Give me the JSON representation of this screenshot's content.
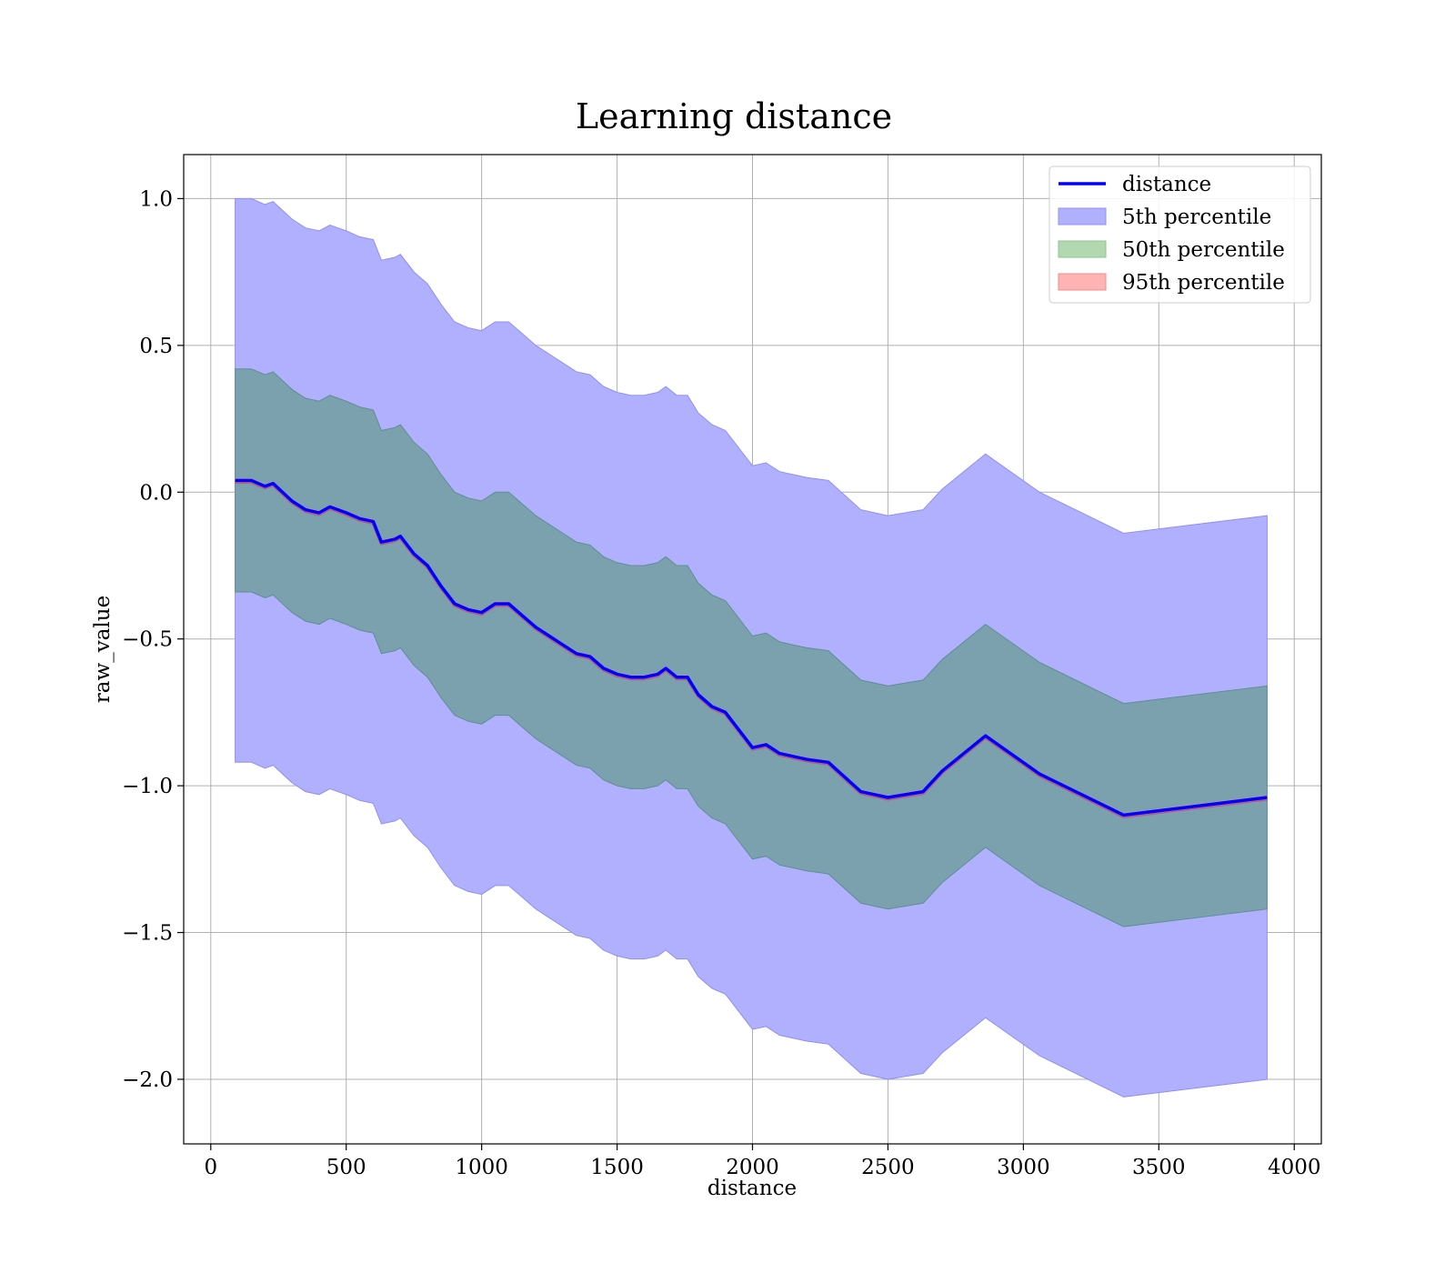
{
  "chart_data": {
    "type": "line",
    "title": "Learning distance",
    "xlabel": "distance",
    "ylabel": "raw_value",
    "xlim": [
      -100,
      4100
    ],
    "ylim": [
      -2.22,
      1.15
    ],
    "x_ticks": [
      0,
      500,
      1000,
      1500,
      2000,
      2500,
      3000,
      3500,
      4000
    ],
    "x_tick_labels": [
      "0",
      "500",
      "1000",
      "1500",
      "2000",
      "2500",
      "3000",
      "3500",
      "4000"
    ],
    "y_ticks": [
      1.0,
      0.5,
      0.0,
      -0.5,
      -1.0,
      -1.5,
      -2.0
    ],
    "y_tick_labels": [
      "1.0",
      "0.5",
      "0.0",
      "−0.5",
      "−1.0",
      "−1.5",
      "−2.0"
    ],
    "grid": true,
    "legend_position": "top-right",
    "legend": [
      {
        "label": "distance",
        "kind": "line",
        "color": "#0000ff"
      },
      {
        "label": "5th percentile",
        "kind": "patch",
        "color": "#b0b0ff",
        "edge": "#8f8ff5"
      },
      {
        "label": "50th percentile",
        "kind": "patch",
        "color": "#b2d8b2",
        "edge": "#8fc48f"
      },
      {
        "label": "95th percentile",
        "kind": "patch",
        "color": "#ffb3b3",
        "edge": "#f08c8c"
      }
    ],
    "colors": {
      "line": "#0000ff",
      "band_outer": "#b0b0ff",
      "band_outer_edge": "#8f8ff5",
      "band_inner": "#7ba1ae",
      "band_inner_edge": "#5f8f8f",
      "line_shadow": "#cc3366"
    },
    "series": [
      {
        "name": "distance",
        "x": [
          90,
          150,
          200,
          230,
          300,
          350,
          400,
          440,
          470,
          500,
          550,
          600,
          630,
          680,
          700,
          750,
          800,
          850,
          900,
          950,
          1000,
          1050,
          1100,
          1150,
          1200,
          1250,
          1300,
          1350,
          1400,
          1450,
          1500,
          1550,
          1600,
          1650,
          1680,
          1720,
          1760,
          1800,
          1850,
          1900,
          2000,
          2050,
          2100,
          2150,
          2200,
          2280,
          2400,
          2500,
          2630,
          2700,
          2860,
          3060,
          3370,
          3900
        ],
        "y": [
          0.04,
          0.04,
          0.02,
          0.03,
          -0.03,
          -0.06,
          -0.07,
          -0.05,
          -0.06,
          -0.07,
          -0.09,
          -0.1,
          -0.17,
          -0.16,
          -0.15,
          -0.21,
          -0.25,
          -0.32,
          -0.38,
          -0.4,
          -0.41,
          -0.38,
          -0.38,
          -0.42,
          -0.46,
          -0.49,
          -0.52,
          -0.55,
          -0.56,
          -0.6,
          -0.62,
          -0.63,
          -0.63,
          -0.62,
          -0.6,
          -0.63,
          -0.63,
          -0.69,
          -0.73,
          -0.75,
          -0.87,
          -0.86,
          -0.89,
          -0.9,
          -0.91,
          -0.92,
          -1.02,
          -1.04,
          -1.02,
          -0.95,
          -0.83,
          -0.96,
          -1.1,
          -1.04
        ]
      },
      {
        "name": "5th percentile",
        "x": [
          90,
          150,
          200,
          230,
          300,
          350,
          400,
          440,
          470,
          500,
          550,
          600,
          630,
          680,
          700,
          750,
          800,
          850,
          900,
          950,
          1000,
          1050,
          1100,
          1150,
          1200,
          1250,
          1300,
          1350,
          1400,
          1450,
          1500,
          1550,
          1600,
          1650,
          1680,
          1720,
          1760,
          1800,
          1850,
          1900,
          2000,
          2050,
          2100,
          2150,
          2200,
          2280,
          2400,
          2500,
          2630,
          2700,
          2860,
          3060,
          3370,
          3900
        ],
        "lower": [
          -0.92,
          -0.92,
          -0.94,
          -0.93,
          -0.99,
          -1.02,
          -1.03,
          -1.01,
          -1.02,
          -1.03,
          -1.05,
          -1.06,
          -1.13,
          -1.12,
          -1.11,
          -1.17,
          -1.21,
          -1.28,
          -1.34,
          -1.36,
          -1.37,
          -1.34,
          -1.34,
          -1.38,
          -1.42,
          -1.45,
          -1.48,
          -1.51,
          -1.52,
          -1.56,
          -1.58,
          -1.59,
          -1.59,
          -1.58,
          -1.56,
          -1.59,
          -1.59,
          -1.65,
          -1.69,
          -1.71,
          -1.83,
          -1.82,
          -1.85,
          -1.86,
          -1.87,
          -1.88,
          -1.98,
          -2.0,
          -1.98,
          -1.91,
          -1.79,
          -1.92,
          -2.06,
          -2.0
        ],
        "upper": [
          1.0,
          1.0,
          0.98,
          0.99,
          0.93,
          0.9,
          0.89,
          0.91,
          0.9,
          0.89,
          0.87,
          0.86,
          0.79,
          0.8,
          0.81,
          0.75,
          0.71,
          0.64,
          0.58,
          0.56,
          0.55,
          0.58,
          0.58,
          0.54,
          0.5,
          0.47,
          0.44,
          0.41,
          0.4,
          0.36,
          0.34,
          0.33,
          0.33,
          0.34,
          0.36,
          0.33,
          0.33,
          0.27,
          0.23,
          0.21,
          0.09,
          0.1,
          0.07,
          0.06,
          0.05,
          0.04,
          -0.06,
          -0.08,
          -0.06,
          0.01,
          0.13,
          0.0,
          -0.14,
          -0.08
        ]
      },
      {
        "name": "50th percentile",
        "x": [
          90,
          150,
          200,
          230,
          300,
          350,
          400,
          440,
          470,
          500,
          550,
          600,
          630,
          680,
          700,
          750,
          800,
          850,
          900,
          950,
          1000,
          1050,
          1100,
          1150,
          1200,
          1250,
          1300,
          1350,
          1400,
          1450,
          1500,
          1550,
          1600,
          1650,
          1680,
          1720,
          1760,
          1800,
          1850,
          1900,
          2000,
          2050,
          2100,
          2150,
          2200,
          2280,
          2400,
          2500,
          2630,
          2700,
          2860,
          3060,
          3370,
          3900
        ],
        "lower": [
          -0.34,
          -0.34,
          -0.36,
          -0.35,
          -0.41,
          -0.44,
          -0.45,
          -0.43,
          -0.44,
          -0.45,
          -0.47,
          -0.48,
          -0.55,
          -0.54,
          -0.53,
          -0.59,
          -0.63,
          -0.7,
          -0.76,
          -0.78,
          -0.79,
          -0.76,
          -0.76,
          -0.8,
          -0.84,
          -0.87,
          -0.9,
          -0.93,
          -0.94,
          -0.98,
          -1.0,
          -1.01,
          -1.01,
          -1.0,
          -0.98,
          -1.01,
          -1.01,
          -1.07,
          -1.11,
          -1.13,
          -1.25,
          -1.24,
          -1.27,
          -1.28,
          -1.29,
          -1.3,
          -1.4,
          -1.42,
          -1.4,
          -1.33,
          -1.21,
          -1.34,
          -1.48,
          -1.42
        ],
        "upper": [
          0.42,
          0.42,
          0.4,
          0.41,
          0.35,
          0.32,
          0.31,
          0.33,
          0.32,
          0.31,
          0.29,
          0.28,
          0.21,
          0.22,
          0.23,
          0.17,
          0.13,
          0.06,
          0.0,
          -0.02,
          -0.03,
          0.0,
          0.0,
          -0.04,
          -0.08,
          -0.11,
          -0.14,
          -0.17,
          -0.18,
          -0.22,
          -0.24,
          -0.25,
          -0.25,
          -0.24,
          -0.22,
          -0.25,
          -0.25,
          -0.31,
          -0.35,
          -0.37,
          -0.49,
          -0.48,
          -0.51,
          -0.52,
          -0.53,
          -0.54,
          -0.64,
          -0.66,
          -0.64,
          -0.57,
          -0.45,
          -0.58,
          -0.72,
          -0.66
        ]
      },
      {
        "name": "95th percentile",
        "x": [
          90,
          150,
          200,
          230,
          300,
          350,
          400,
          440,
          470,
          500,
          550,
          600,
          630,
          680,
          700,
          750,
          800,
          850,
          900,
          950,
          1000,
          1050,
          1100,
          1150,
          1200,
          1250,
          1300,
          1350,
          1400,
          1450,
          1500,
          1550,
          1600,
          1650,
          1680,
          1720,
          1760,
          1800,
          1850,
          1900,
          2000,
          2050,
          2100,
          2150,
          2200,
          2280,
          2400,
          2500,
          2630,
          2700,
          2860,
          3060,
          3370,
          3900
        ],
        "lower": [
          0.035,
          0.035,
          0.015,
          0.025,
          -0.035,
          -0.065,
          -0.075,
          -0.055,
          -0.065,
          -0.075,
          -0.095,
          -0.105,
          -0.175,
          -0.165,
          -0.155,
          -0.215,
          -0.255,
          -0.325,
          -0.385,
          -0.405,
          -0.415,
          -0.385,
          -0.385,
          -0.425,
          -0.465,
          -0.495,
          -0.525,
          -0.555,
          -0.565,
          -0.605,
          -0.625,
          -0.635,
          -0.635,
          -0.625,
          -0.605,
          -0.635,
          -0.635,
          -0.695,
          -0.735,
          -0.755,
          -0.875,
          -0.865,
          -0.895,
          -0.905,
          -0.915,
          -0.925,
          -1.025,
          -1.045,
          -1.025,
          -0.955,
          -0.835,
          -0.965,
          -1.105,
          -1.045
        ],
        "upper": [
          0.045,
          0.045,
          0.025,
          0.035,
          -0.025,
          -0.055,
          -0.065,
          -0.045,
          -0.055,
          -0.065,
          -0.085,
          -0.095,
          -0.165,
          -0.155,
          -0.145,
          -0.205,
          -0.245,
          -0.315,
          -0.375,
          -0.395,
          -0.405,
          -0.375,
          -0.375,
          -0.415,
          -0.455,
          -0.485,
          -0.515,
          -0.545,
          -0.555,
          -0.595,
          -0.615,
          -0.625,
          -0.625,
          -0.615,
          -0.595,
          -0.625,
          -0.625,
          -0.685,
          -0.725,
          -0.745,
          -0.865,
          -0.855,
          -0.885,
          -0.895,
          -0.905,
          -0.915,
          -1.015,
          -1.035,
          -1.015,
          -0.945,
          -0.825,
          -0.955,
          -1.095,
          -1.035
        ]
      }
    ]
  }
}
